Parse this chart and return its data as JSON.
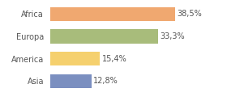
{
  "categories": [
    "Africa",
    "Europa",
    "America",
    "Asia"
  ],
  "values": [
    38.5,
    33.3,
    15.4,
    12.8
  ],
  "labels": [
    "38,5%",
    "33,3%",
    "15,4%",
    "12,8%"
  ],
  "colors": [
    "#f0a870",
    "#a8bc7b",
    "#f5d06e",
    "#7b8fc0"
  ],
  "xlim": [
    0,
    46
  ],
  "background_color": "#ffffff",
  "bar_height": 0.62,
  "label_fontsize": 7.0,
  "category_fontsize": 7.0,
  "label_color": "#555555",
  "tick_color": "#555555"
}
